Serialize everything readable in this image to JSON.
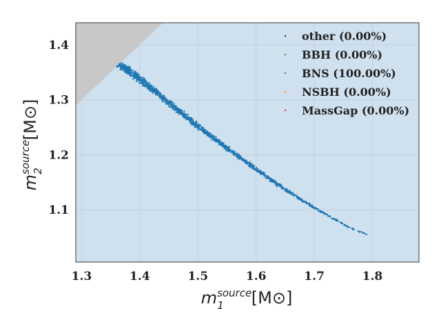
{
  "chart_data": {
    "type": "scatter",
    "xlabel": {
      "base": "m",
      "sub": "1",
      "sup": "source",
      "unit": "[M",
      "unit_close": "]"
    },
    "ylabel": {
      "base": "m",
      "sub": "2",
      "sup": "source",
      "unit": "[M",
      "unit_close": "]"
    },
    "xlim": [
      1.29,
      1.88
    ],
    "ylim": [
      1.005,
      1.44
    ],
    "xticks": [
      "1.3",
      "1.4",
      "1.5",
      "1.6",
      "1.7",
      "1.8"
    ],
    "yticks": [
      "1.1",
      "1.2",
      "1.3",
      "1.4"
    ],
    "grid": true,
    "background_color": "#cfe1ef",
    "excluded_region_color": "#c8c8c8",
    "legend_position": "top-right",
    "legend": [
      {
        "label": "other (0.00%)",
        "color": "#1a1a1a"
      },
      {
        "label": "BBH (0.00%)",
        "color": "#2ca02c"
      },
      {
        "label": "BNS (100.00%)",
        "color": "#1f77b4"
      },
      {
        "label": "NSBH (0.00%)",
        "color": "#ff7f0e"
      },
      {
        "label": "MassGap (0.00%)",
        "color": "#d62728"
      }
    ],
    "series": [
      {
        "name": "BNS (100.00%)",
        "color": "#1f77b4",
        "points": [
          [
            1.365,
            1.365
          ],
          [
            1.38,
            1.353
          ],
          [
            1.4,
            1.337
          ],
          [
            1.42,
            1.32
          ],
          [
            1.44,
            1.303
          ],
          [
            1.46,
            1.286
          ],
          [
            1.48,
            1.269
          ],
          [
            1.5,
            1.252
          ],
          [
            1.52,
            1.236
          ],
          [
            1.54,
            1.22
          ],
          [
            1.56,
            1.204
          ],
          [
            1.58,
            1.189
          ],
          [
            1.6,
            1.174
          ],
          [
            1.62,
            1.159
          ],
          [
            1.64,
            1.144
          ],
          [
            1.66,
            1.13
          ],
          [
            1.68,
            1.117
          ],
          [
            1.7,
            1.104
          ],
          [
            1.72,
            1.092
          ],
          [
            1.74,
            1.08
          ],
          [
            1.76,
            1.068
          ],
          [
            1.79,
            1.055
          ]
        ]
      }
    ]
  }
}
